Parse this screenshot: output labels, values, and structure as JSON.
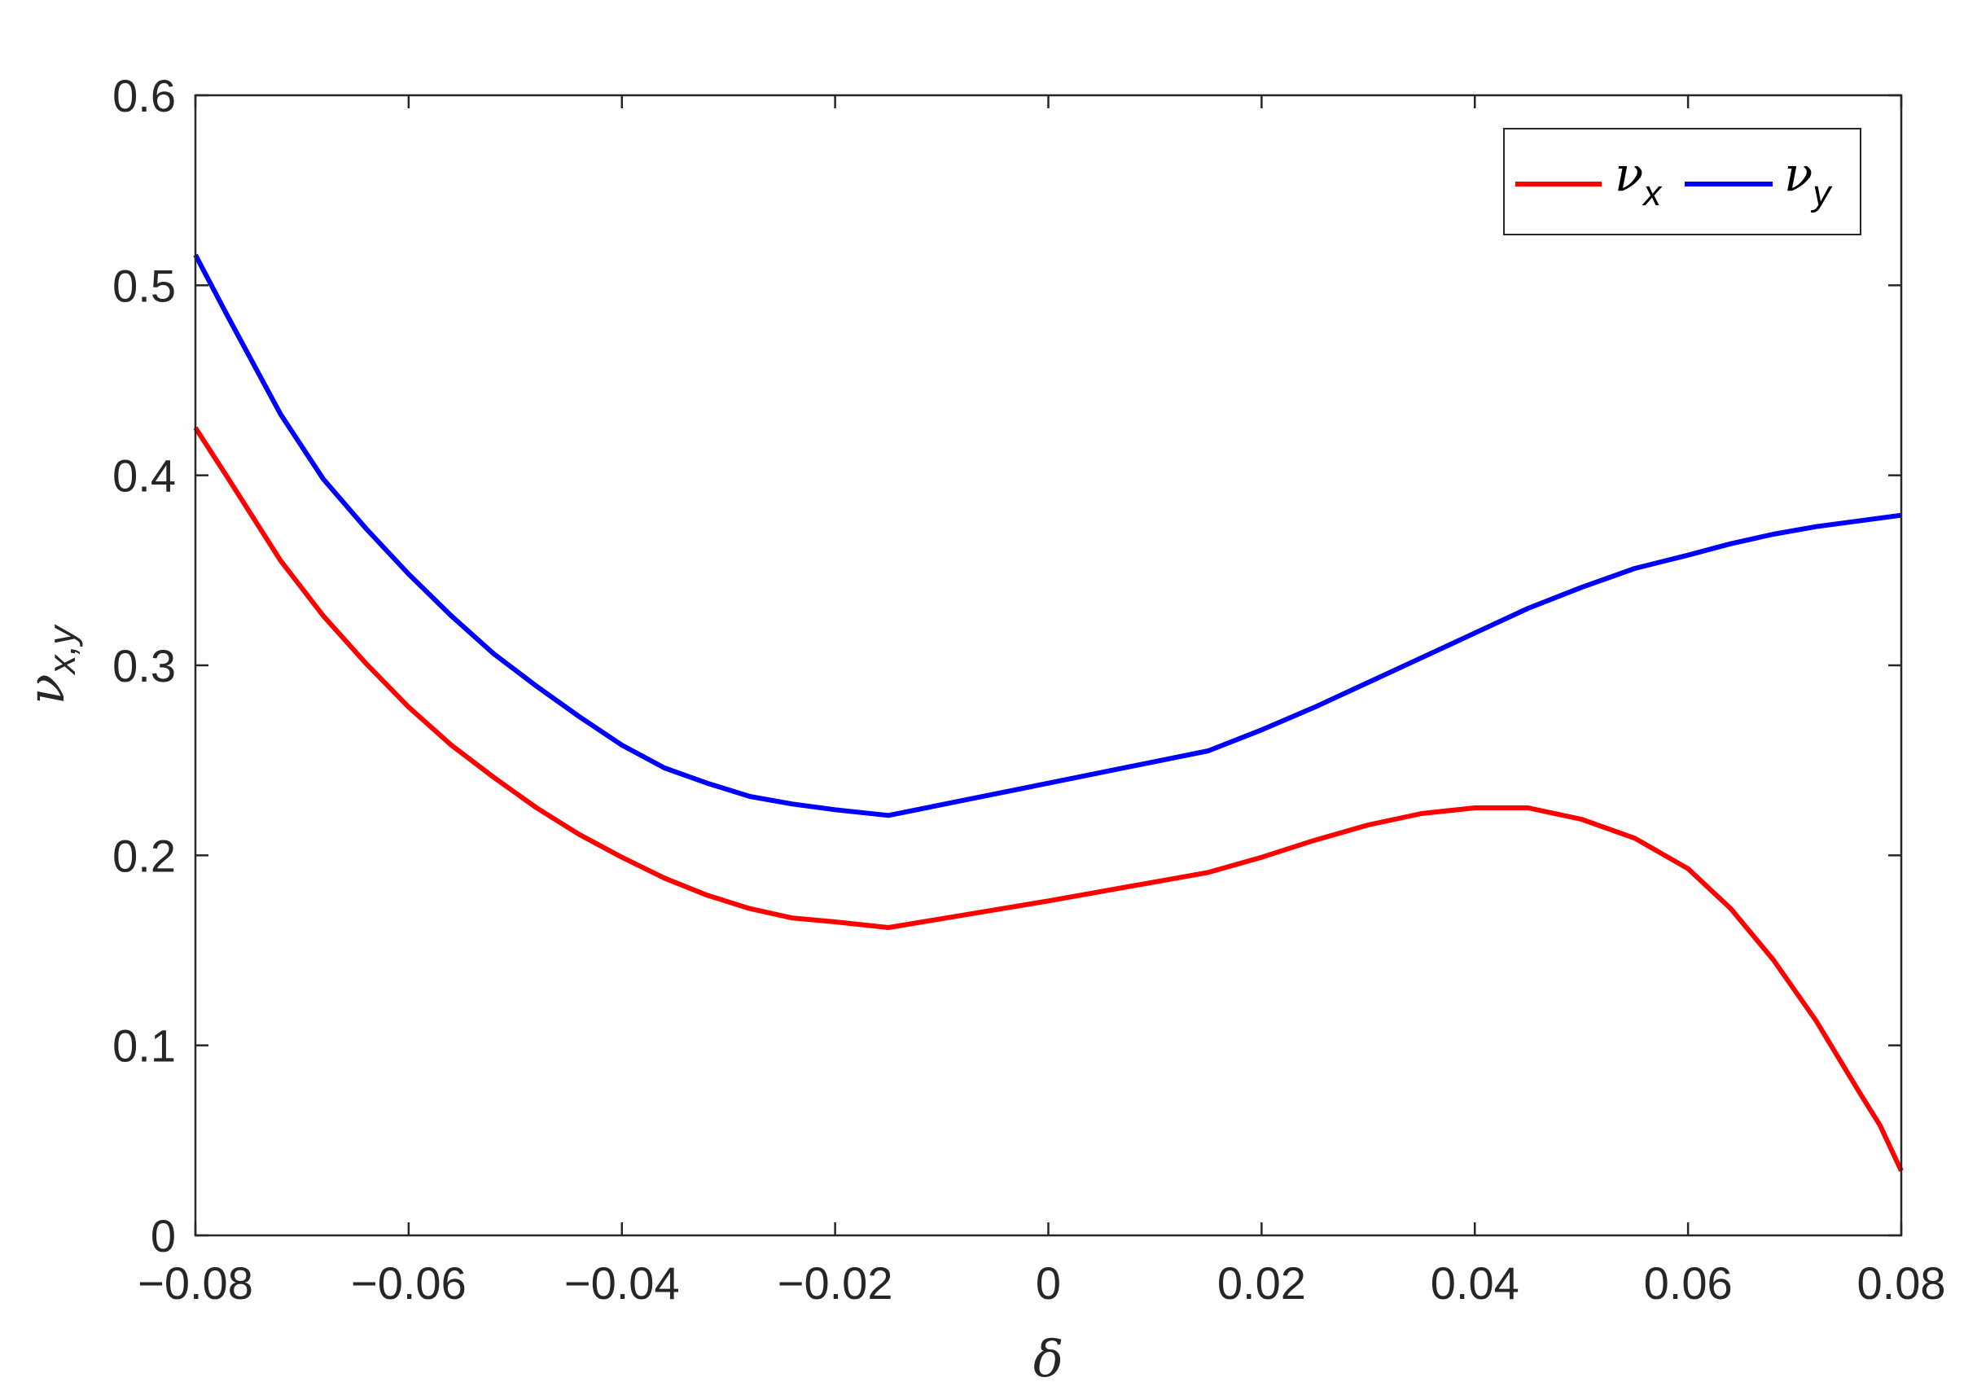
{
  "chart_data": {
    "type": "line",
    "xlabel": "δ",
    "ylabel": {
      "main": "ν",
      "sub": "x,y"
    },
    "xlim": [
      -0.08,
      0.08
    ],
    "ylim": [
      0,
      0.6
    ],
    "xticks": [
      -0.08,
      -0.06,
      -0.04,
      -0.02,
      0,
      0.02,
      0.04,
      0.06,
      0.08
    ],
    "xtick_labels": [
      "−0.08",
      "−0.06",
      "−0.04",
      "−0.02",
      "0",
      "0.02",
      "0.04",
      "0.06",
      "0.08"
    ],
    "yticks": [
      0,
      0.1,
      0.2,
      0.3,
      0.4,
      0.5,
      0.6
    ],
    "ytick_labels": [
      "0",
      "0.1",
      "0.2",
      "0.3",
      "0.4",
      "0.5",
      "0.6"
    ],
    "grid": false,
    "legend_position": "top-right",
    "series": [
      {
        "name": "ν",
        "name_sub": "x",
        "color": "#ff0000",
        "x": [
          -0.08,
          -0.077,
          -0.072,
          -0.068,
          -0.064,
          -0.06,
          -0.056,
          -0.052,
          -0.048,
          -0.044,
          -0.04,
          -0.036,
          -0.032,
          -0.028,
          -0.024,
          -0.02,
          -0.015,
          0,
          0.015,
          0.02,
          0.025,
          0.03,
          0.035,
          0.04,
          0.045,
          0.05,
          0.055,
          0.06,
          0.064,
          0.068,
          0.072,
          0.076,
          0.078,
          0.08
        ],
        "y": [
          0.425,
          0.399,
          0.355,
          0.326,
          0.301,
          0.278,
          0.258,
          0.241,
          0.225,
          0.211,
          0.199,
          0.188,
          0.179,
          0.172,
          0.167,
          0.165,
          0.162,
          0.176,
          0.191,
          0.199,
          0.208,
          0.216,
          0.222,
          0.225,
          0.225,
          0.219,
          0.209,
          0.193,
          0.172,
          0.145,
          0.113,
          0.076,
          0.058,
          0.034
        ]
      },
      {
        "name": "ν",
        "name_sub": "y",
        "color": "#0000ff",
        "x": [
          -0.08,
          -0.077,
          -0.072,
          -0.068,
          -0.064,
          -0.06,
          -0.056,
          -0.052,
          -0.048,
          -0.044,
          -0.04,
          -0.036,
          -0.032,
          -0.028,
          -0.024,
          -0.02,
          -0.015,
          0,
          0.015,
          0.02,
          0.025,
          0.03,
          0.035,
          0.04,
          0.045,
          0.05,
          0.055,
          0.06,
          0.064,
          0.068,
          0.072,
          0.076,
          0.08
        ],
        "y": [
          0.516,
          0.484,
          0.432,
          0.398,
          0.372,
          0.348,
          0.326,
          0.306,
          0.289,
          0.273,
          0.258,
          0.246,
          0.238,
          0.231,
          0.227,
          0.224,
          0.221,
          0.238,
          0.255,
          0.266,
          0.278,
          0.291,
          0.304,
          0.317,
          0.33,
          0.341,
          0.351,
          0.358,
          0.364,
          0.369,
          0.373,
          0.376,
          0.379
        ]
      }
    ]
  }
}
